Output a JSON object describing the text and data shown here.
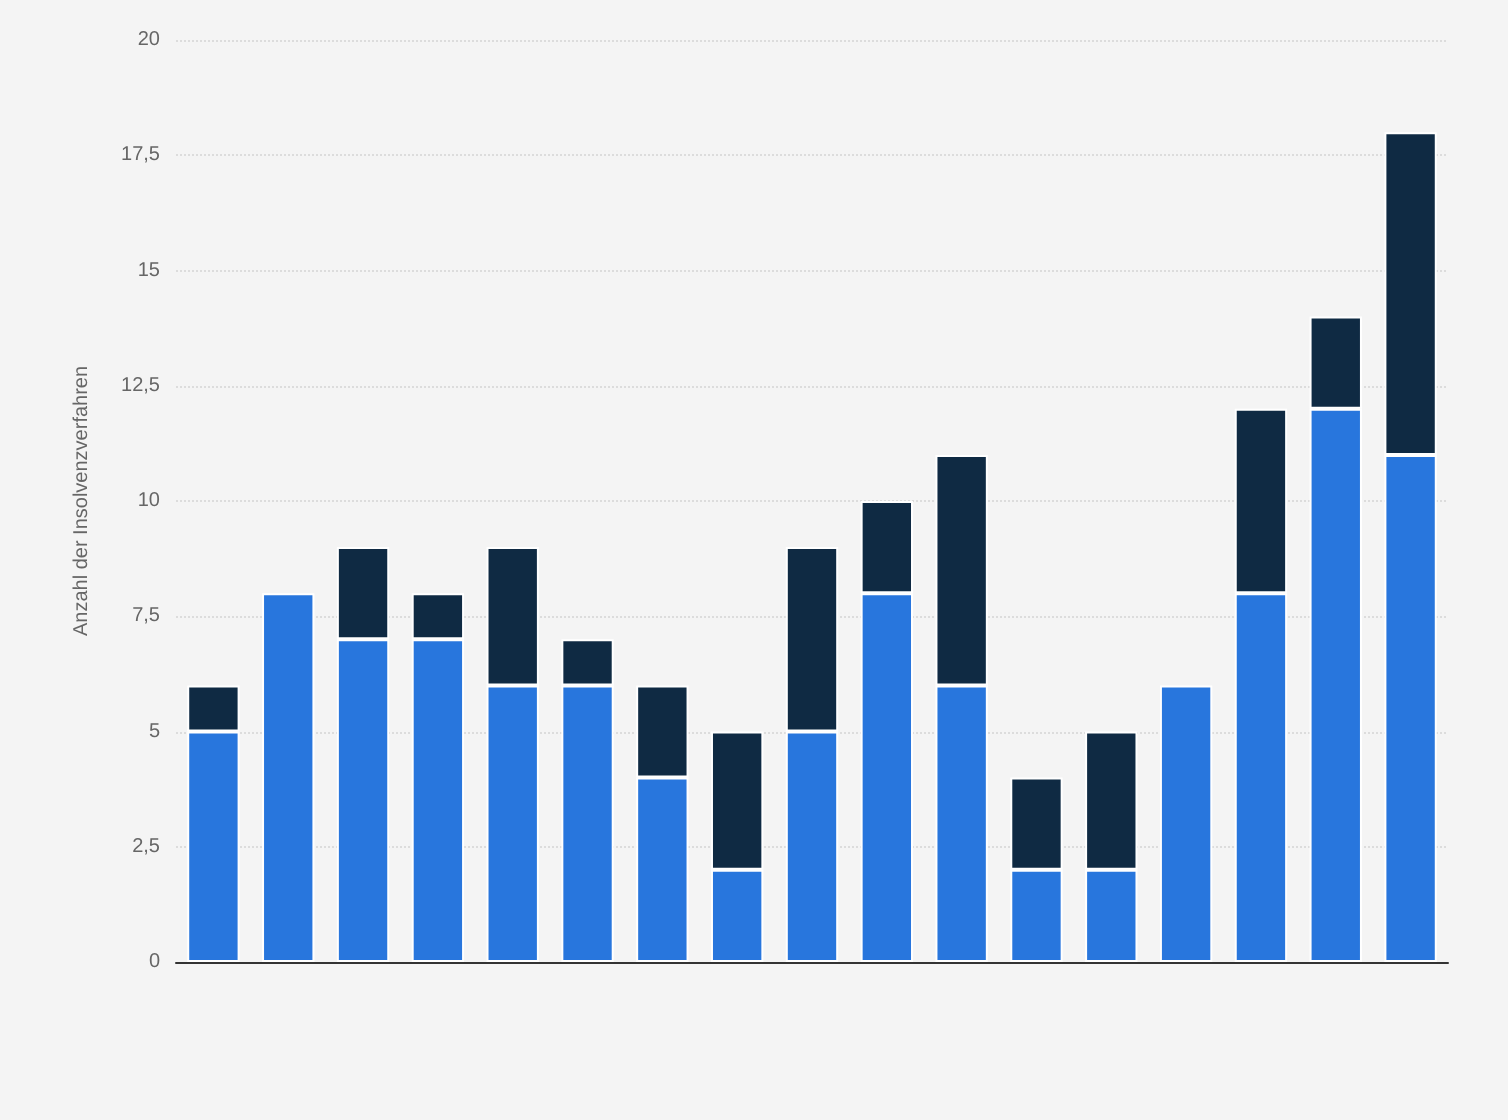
{
  "chart_data": {
    "type": "bar",
    "stacked": true,
    "ylabel": "Anzahl der Insolvenzverfahren",
    "categories": [
      null,
      null,
      null,
      null,
      null,
      null,
      null,
      null,
      null,
      null,
      null,
      null,
      null,
      null,
      null,
      null,
      null
    ],
    "series": [
      {
        "color": "#2876dd",
        "values": [
          5,
          8,
          7,
          7,
          6,
          6,
          4,
          2,
          5,
          8,
          6,
          2,
          2,
          6,
          8,
          12,
          11
        ]
      },
      {
        "color": "#0f2a43",
        "values": [
          1,
          0,
          2,
          1,
          3,
          1,
          2,
          3,
          4,
          2,
          5,
          2,
          3,
          0,
          4,
          2,
          7
        ]
      }
    ],
    "ylim": [
      0,
      20
    ],
    "yticks": [
      0,
      {
        "value": 2.5,
        "label": "2,5"
      },
      5,
      {
        "value": 7.5,
        "label": "7,5"
      },
      10,
      {
        "value": 12.5,
        "label": "12,5"
      },
      15,
      {
        "value": 17.5,
        "label": "17,5"
      },
      20
    ],
    "grid": "y"
  }
}
